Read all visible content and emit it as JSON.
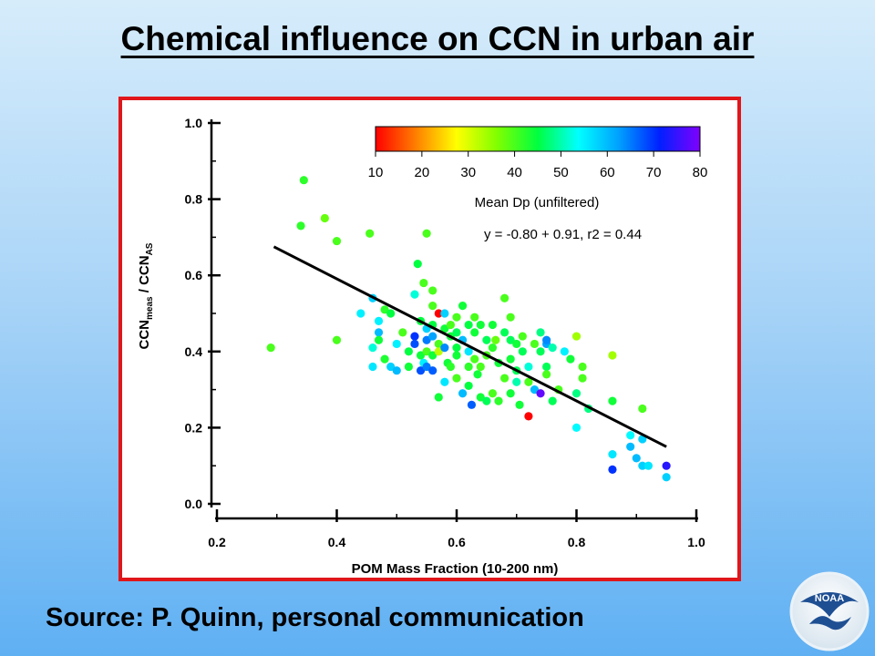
{
  "slide": {
    "title": "Chemical influence on CCN in urban air",
    "source": "Source:  P. Quinn, personal communication"
  },
  "logo": {
    "text": "NOAA"
  },
  "colors": {
    "frame": "#e0161a",
    "fit_line": "#000000",
    "colorscale": [
      "#ff0000",
      "#ff8000",
      "#ffff00",
      "#80ff00",
      "#00ff40",
      "#00ffff",
      "#00a0ff",
      "#0020ff",
      "#8000ff"
    ]
  },
  "chart_data": {
    "type": "scatter",
    "xlabel": "POM Mass Fraction (10-200 nm)",
    "ylabel": {
      "main1": "CCN",
      "sub1": "meas",
      "main2": " / CCN",
      "sub2": "AS"
    },
    "xlim": [
      0.2,
      1.0
    ],
    "ylim": [
      0.0,
      1.0
    ],
    "xticks": [
      "0.2",
      "0.4",
      "0.6",
      "0.8",
      "1.0"
    ],
    "yticks": [
      "0.0",
      "0.2",
      "0.4",
      "0.6",
      "0.8",
      "1.0"
    ],
    "grid": false,
    "colorbar": {
      "label": "Mean Dp (unfiltered)",
      "range": [
        10,
        80
      ],
      "ticks": [
        "10",
        "20",
        "30",
        "40",
        "50",
        "60",
        "70",
        "80"
      ]
    },
    "fit": {
      "label": "y = -0.80 + 0.91, r2 = 0.44",
      "x": [
        0.295,
        0.95
      ],
      "y": [
        0.675,
        0.15
      ]
    },
    "points": [
      [
        0.29,
        0.41,
        40
      ],
      [
        0.34,
        0.73,
        42
      ],
      [
        0.345,
        0.85,
        42
      ],
      [
        0.38,
        0.75,
        38
      ],
      [
        0.4,
        0.69,
        40
      ],
      [
        0.4,
        0.43,
        40
      ],
      [
        0.455,
        0.71,
        40
      ],
      [
        0.55,
        0.71,
        40
      ],
      [
        0.535,
        0.63,
        45
      ],
      [
        0.545,
        0.58,
        40
      ],
      [
        0.56,
        0.56,
        40
      ],
      [
        0.44,
        0.5,
        55
      ],
      [
        0.46,
        0.54,
        58
      ],
      [
        0.47,
        0.48,
        55
      ],
      [
        0.48,
        0.51,
        42
      ],
      [
        0.49,
        0.5,
        45
      ],
      [
        0.47,
        0.45,
        60
      ],
      [
        0.46,
        0.41,
        52
      ],
      [
        0.47,
        0.43,
        44
      ],
      [
        0.48,
        0.38,
        43
      ],
      [
        0.49,
        0.36,
        58
      ],
      [
        0.46,
        0.36,
        56
      ],
      [
        0.5,
        0.42,
        55
      ],
      [
        0.5,
        0.35,
        60
      ],
      [
        0.51,
        0.45,
        40
      ],
      [
        0.52,
        0.4,
        45
      ],
      [
        0.52,
        0.36,
        44
      ],
      [
        0.53,
        0.55,
        52
      ],
      [
        0.53,
        0.44,
        70
      ],
      [
        0.53,
        0.42,
        68
      ],
      [
        0.54,
        0.48,
        45
      ],
      [
        0.54,
        0.39,
        44
      ],
      [
        0.54,
        0.35,
        68
      ],
      [
        0.545,
        0.37,
        55
      ],
      [
        0.55,
        0.46,
        58
      ],
      [
        0.55,
        0.43,
        65
      ],
      [
        0.55,
        0.4,
        40
      ],
      [
        0.55,
        0.36,
        65
      ],
      [
        0.56,
        0.52,
        40
      ],
      [
        0.56,
        0.47,
        45
      ],
      [
        0.56,
        0.44,
        62
      ],
      [
        0.56,
        0.39,
        44
      ],
      [
        0.56,
        0.35,
        67
      ],
      [
        0.57,
        0.5,
        10
      ],
      [
        0.57,
        0.42,
        40
      ],
      [
        0.57,
        0.4,
        32
      ],
      [
        0.57,
        0.28,
        44
      ],
      [
        0.58,
        0.5,
        58
      ],
      [
        0.58,
        0.46,
        44
      ],
      [
        0.58,
        0.41,
        64
      ],
      [
        0.58,
        0.32,
        56
      ],
      [
        0.585,
        0.37,
        44
      ],
      [
        0.59,
        0.47,
        40
      ],
      [
        0.59,
        0.44,
        44
      ],
      [
        0.59,
        0.36,
        42
      ],
      [
        0.6,
        0.49,
        40
      ],
      [
        0.6,
        0.45,
        46
      ],
      [
        0.6,
        0.41,
        45
      ],
      [
        0.6,
        0.39,
        44
      ],
      [
        0.6,
        0.33,
        40
      ],
      [
        0.61,
        0.52,
        44
      ],
      [
        0.61,
        0.43,
        60
      ],
      [
        0.61,
        0.29,
        60
      ],
      [
        0.62,
        0.47,
        45
      ],
      [
        0.62,
        0.4,
        56
      ],
      [
        0.62,
        0.36,
        42
      ],
      [
        0.62,
        0.31,
        45
      ],
      [
        0.625,
        0.26,
        67
      ],
      [
        0.63,
        0.49,
        40
      ],
      [
        0.63,
        0.45,
        44
      ],
      [
        0.63,
        0.38,
        40
      ],
      [
        0.635,
        0.34,
        44
      ],
      [
        0.64,
        0.47,
        44
      ],
      [
        0.64,
        0.36,
        40
      ],
      [
        0.64,
        0.28,
        44
      ],
      [
        0.65,
        0.43,
        46
      ],
      [
        0.65,
        0.39,
        40
      ],
      [
        0.65,
        0.27,
        46
      ],
      [
        0.66,
        0.47,
        44
      ],
      [
        0.66,
        0.41,
        42
      ],
      [
        0.66,
        0.29,
        40
      ],
      [
        0.665,
        0.43,
        38
      ],
      [
        0.67,
        0.37,
        44
      ],
      [
        0.67,
        0.27,
        42
      ],
      [
        0.68,
        0.54,
        40
      ],
      [
        0.68,
        0.45,
        46
      ],
      [
        0.68,
        0.33,
        40
      ],
      [
        0.69,
        0.49,
        40
      ],
      [
        0.69,
        0.43,
        46
      ],
      [
        0.69,
        0.38,
        44
      ],
      [
        0.69,
        0.29,
        44
      ],
      [
        0.7,
        0.42,
        44
      ],
      [
        0.7,
        0.35,
        46
      ],
      [
        0.7,
        0.32,
        50
      ],
      [
        0.705,
        0.26,
        44
      ],
      [
        0.71,
        0.44,
        40
      ],
      [
        0.71,
        0.4,
        46
      ],
      [
        0.72,
        0.23,
        10
      ],
      [
        0.72,
        0.36,
        52
      ],
      [
        0.72,
        0.32,
        40
      ],
      [
        0.73,
        0.42,
        40
      ],
      [
        0.73,
        0.3,
        60
      ],
      [
        0.74,
        0.45,
        48
      ],
      [
        0.74,
        0.4,
        46
      ],
      [
        0.74,
        0.29,
        78
      ],
      [
        0.75,
        0.42,
        62
      ],
      [
        0.75,
        0.43,
        64
      ],
      [
        0.75,
        0.36,
        46
      ],
      [
        0.75,
        0.34,
        40
      ],
      [
        0.76,
        0.41,
        50
      ],
      [
        0.76,
        0.27,
        46
      ],
      [
        0.77,
        0.3,
        40
      ],
      [
        0.78,
        0.4,
        55
      ],
      [
        0.79,
        0.38,
        44
      ],
      [
        0.8,
        0.44,
        34
      ],
      [
        0.8,
        0.29,
        48
      ],
      [
        0.8,
        0.2,
        54
      ],
      [
        0.81,
        0.36,
        40
      ],
      [
        0.81,
        0.33,
        40
      ],
      [
        0.82,
        0.25,
        48
      ],
      [
        0.86,
        0.39,
        34
      ],
      [
        0.86,
        0.27,
        44
      ],
      [
        0.86,
        0.13,
        56
      ],
      [
        0.86,
        0.09,
        70
      ],
      [
        0.89,
        0.15,
        60
      ],
      [
        0.89,
        0.18,
        54
      ],
      [
        0.9,
        0.12,
        60
      ],
      [
        0.91,
        0.25,
        40
      ],
      [
        0.91,
        0.17,
        58
      ],
      [
        0.91,
        0.1,
        58
      ],
      [
        0.92,
        0.1,
        56
      ],
      [
        0.95,
        0.1,
        74
      ],
      [
        0.95,
        0.07,
        58
      ]
    ]
  }
}
